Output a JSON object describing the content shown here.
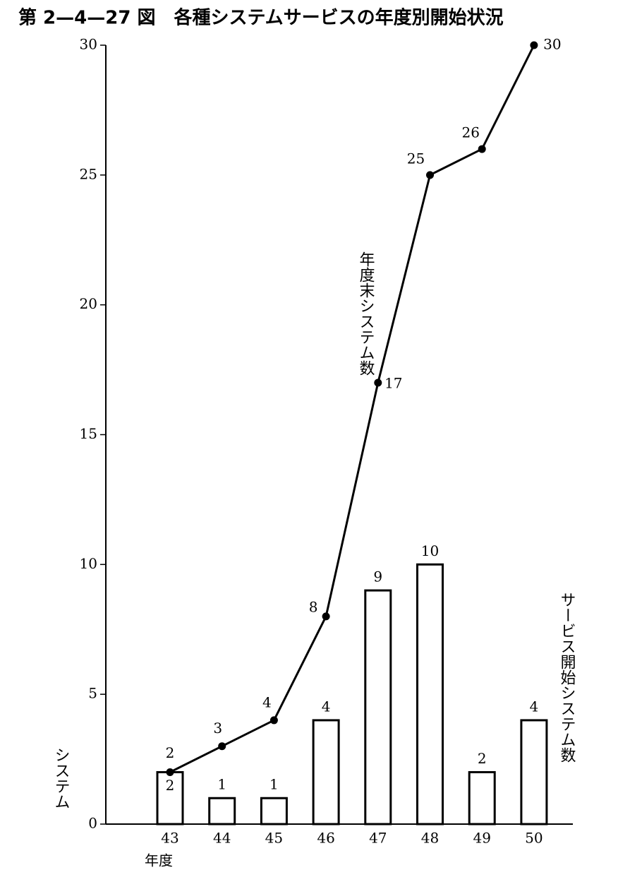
{
  "chart_data": {
    "type": "bar",
    "title": "第 2—4—27 図　各種システムサービスの年度別開始状況",
    "y_label": "システム",
    "x_label": "年度",
    "categories": [
      "43",
      "44",
      "45",
      "46",
      "47",
      "48",
      "49",
      "50"
    ],
    "series": [
      {
        "name": "サービス開始システム数",
        "type": "bar",
        "color": "#ffffff",
        "values": [
          2,
          1,
          1,
          4,
          9,
          10,
          2,
          4
        ]
      },
      {
        "name": "年度末システム数",
        "type": "line",
        "color": "#000000",
        "values": [
          2,
          3,
          4,
          8,
          17,
          25,
          26,
          30
        ]
      }
    ],
    "ylim": [
      0,
      30
    ],
    "yticks": [
      0,
      5,
      10,
      15,
      20,
      25,
      30
    ],
    "grid": false
  }
}
